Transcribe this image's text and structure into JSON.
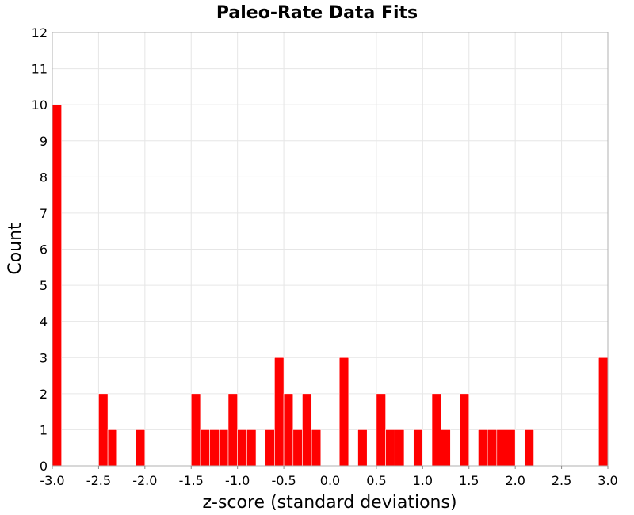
{
  "chart_data": {
    "type": "bar",
    "title": "Paleo-Rate Data Fits",
    "xlabel": "z-score (standard deviations)",
    "ylabel": "Count",
    "xlim": [
      -3.0,
      3.0
    ],
    "ylim": [
      0,
      12
    ],
    "bin_width": 0.1,
    "x_ticks": [
      "-3.0",
      "-2.5",
      "-2.0",
      "-1.5",
      "-1.0",
      "-0.5",
      "0.0",
      "0.5",
      "1.0",
      "1.5",
      "2.0",
      "2.5",
      "3.0"
    ],
    "y_ticks": [
      "0",
      "1",
      "2",
      "3",
      "4",
      "5",
      "6",
      "7",
      "8",
      "9",
      "10",
      "11",
      "12"
    ],
    "grid": true,
    "bar_color": "#ff0000",
    "bins": [
      {
        "x": -2.95,
        "count": 10
      },
      {
        "x": -2.45,
        "count": 2
      },
      {
        "x": -2.35,
        "count": 1
      },
      {
        "x": -2.05,
        "count": 1
      },
      {
        "x": -1.45,
        "count": 2
      },
      {
        "x": -1.35,
        "count": 1
      },
      {
        "x": -1.25,
        "count": 1
      },
      {
        "x": -1.15,
        "count": 1
      },
      {
        "x": -1.05,
        "count": 2
      },
      {
        "x": -0.95,
        "count": 1
      },
      {
        "x": -0.85,
        "count": 1
      },
      {
        "x": -0.65,
        "count": 1
      },
      {
        "x": -0.55,
        "count": 3
      },
      {
        "x": -0.45,
        "count": 2
      },
      {
        "x": -0.35,
        "count": 1
      },
      {
        "x": -0.25,
        "count": 2
      },
      {
        "x": -0.15,
        "count": 1
      },
      {
        "x": 0.15,
        "count": 3
      },
      {
        "x": 0.35,
        "count": 1
      },
      {
        "x": 0.55,
        "count": 2
      },
      {
        "x": 0.65,
        "count": 1
      },
      {
        "x": 0.75,
        "count": 1
      },
      {
        "x": 0.95,
        "count": 1
      },
      {
        "x": 1.15,
        "count": 2
      },
      {
        "x": 1.25,
        "count": 1
      },
      {
        "x": 1.45,
        "count": 2
      },
      {
        "x": 1.65,
        "count": 1
      },
      {
        "x": 1.75,
        "count": 1
      },
      {
        "x": 1.85,
        "count": 1
      },
      {
        "x": 1.95,
        "count": 1
      },
      {
        "x": 2.15,
        "count": 1
      },
      {
        "x": 2.95,
        "count": 3
      }
    ]
  }
}
